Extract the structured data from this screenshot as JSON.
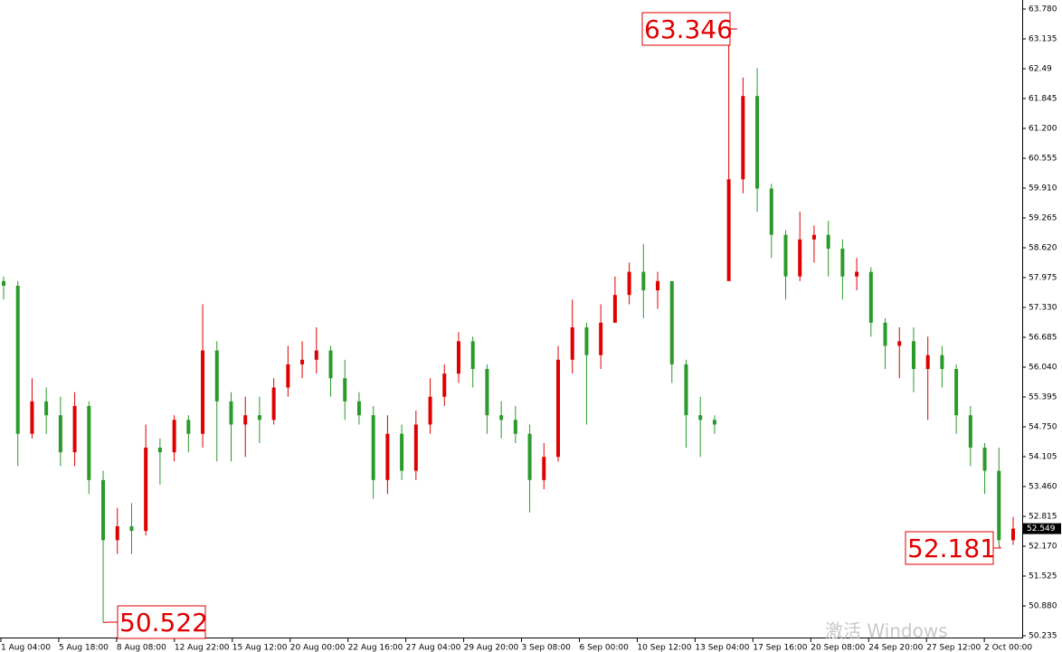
{
  "chart_data": {
    "type": "candlestick",
    "up_color": "#e00000",
    "down_color": "#2a9a2a",
    "ylim": [
      50.235,
      63.78
    ],
    "yticks": [
      50.235,
      {
        "value": 50.88,
        "label": "50.880"
      },
      51.525,
      {
        "value": 52.17,
        "label": "52.170"
      },
      52.815,
      {
        "value": 53.46,
        "label": "53.460"
      },
      54.105,
      {
        "value": 54.75,
        "label": "54.750"
      },
      55.395,
      {
        "value": 56.04,
        "label": "56.040"
      },
      56.685,
      {
        "value": 57.33,
        "label": "57.330"
      },
      57.975,
      {
        "value": 58.62,
        "label": "58.620"
      },
      59.265,
      {
        "value": 59.91,
        "label": "59.910"
      },
      60.555,
      {
        "value": 61.2,
        "label": "61.200"
      },
      61.845,
      62.49,
      63.135,
      {
        "value": 63.78,
        "label": "63.780"
      }
    ],
    "xlabels": [
      "1 Aug 04:00",
      "5 Aug 18:00",
      "8 Aug 08:00",
      "12 Aug 22:00",
      "15 Aug 12:00",
      "20 Aug 00:00",
      "22 Aug 16:00",
      "27 Aug 04:00",
      "29 Aug 20:00",
      "3 Sep 08:00",
      "6 Sep 00:00",
      "10 Sep 12:00",
      "13 Sep 04:00",
      "17 Sep 16:00",
      "20 Sep 08:00",
      "24 Sep 20:00",
      "27 Sep 12:00",
      "2 Oct 00:00"
    ],
    "candles": [
      [
        57.9,
        58.0,
        57.5,
        57.8
      ],
      [
        57.8,
        57.9,
        53.9,
        54.6
      ],
      [
        54.6,
        55.8,
        54.5,
        55.3
      ],
      [
        55.3,
        55.6,
        54.6,
        55.0
      ],
      [
        55.0,
        55.4,
        53.9,
        54.2
      ],
      [
        54.2,
        55.5,
        53.9,
        55.2
      ],
      [
        55.2,
        55.3,
        53.3,
        53.6
      ],
      [
        53.6,
        53.8,
        50.522,
        52.3
      ],
      [
        52.3,
        53.0,
        52.0,
        52.6
      ],
      [
        52.6,
        53.1,
        52.0,
        52.5
      ],
      [
        52.5,
        54.8,
        52.4,
        54.3
      ],
      [
        54.3,
        54.5,
        53.5,
        54.2
      ],
      [
        54.2,
        55.0,
        54.0,
        54.9
      ],
      [
        54.9,
        55.0,
        54.2,
        54.6
      ],
      [
        54.6,
        57.4,
        54.3,
        56.4
      ],
      [
        56.4,
        56.6,
        54.0,
        55.3
      ],
      [
        55.3,
        55.5,
        54.0,
        54.8
      ],
      [
        54.8,
        55.4,
        54.1,
        55.0
      ],
      [
        55.0,
        55.4,
        54.4,
        54.9
      ],
      [
        54.9,
        55.8,
        54.8,
        55.6
      ],
      [
        55.6,
        56.5,
        55.4,
        56.1
      ],
      [
        56.1,
        56.6,
        55.8,
        56.2
      ],
      [
        56.2,
        56.9,
        55.9,
        56.4
      ],
      [
        56.4,
        56.5,
        55.4,
        55.8
      ],
      [
        55.8,
        56.2,
        54.9,
        55.3
      ],
      [
        55.3,
        55.5,
        54.8,
        55.0
      ],
      [
        55.0,
        55.2,
        53.2,
        53.6
      ],
      [
        53.6,
        55.0,
        53.3,
        54.6
      ],
      [
        54.6,
        54.8,
        53.6,
        53.8
      ],
      [
        53.8,
        55.1,
        53.6,
        54.8
      ],
      [
        54.8,
        55.8,
        54.6,
        55.4
      ],
      [
        55.4,
        56.1,
        55.2,
        55.9
      ],
      [
        55.9,
        56.8,
        55.7,
        56.6
      ],
      [
        56.6,
        56.7,
        55.6,
        56.0
      ],
      [
        56.0,
        56.1,
        54.6,
        55.0
      ],
      [
        55.0,
        55.3,
        54.5,
        54.9
      ],
      [
        54.9,
        55.2,
        54.4,
        54.6
      ],
      [
        54.6,
        54.8,
        52.9,
        53.6
      ],
      [
        53.6,
        54.4,
        53.4,
        54.1
      ],
      [
        54.1,
        56.5,
        54.0,
        56.2
      ],
      [
        56.2,
        57.5,
        55.9,
        56.9
      ],
      [
        56.9,
        57.0,
        54.8,
        56.3
      ],
      [
        56.3,
        57.4,
        56.0,
        57.0
      ],
      [
        57.0,
        58.0,
        57.0,
        57.6
      ],
      [
        57.6,
        58.3,
        57.4,
        58.1
      ],
      [
        58.1,
        58.7,
        57.1,
        57.7
      ],
      [
        57.7,
        58.1,
        57.3,
        57.9
      ],
      [
        57.9,
        57.9,
        55.7,
        56.1
      ],
      [
        56.1,
        56.2,
        54.3,
        55.0
      ],
      [
        55.0,
        55.4,
        54.1,
        54.9
      ],
      [
        54.9,
        55.0,
        54.6,
        54.8
      ],
      [
        57.9,
        63.346,
        57.9,
        60.1
      ],
      [
        60.1,
        62.3,
        59.8,
        61.9
      ],
      [
        61.9,
        62.5,
        59.4,
        59.9
      ],
      [
        59.9,
        60.0,
        58.4,
        58.9
      ],
      [
        58.9,
        59.0,
        57.5,
        58.0
      ],
      [
        58.0,
        59.4,
        57.9,
        58.8
      ],
      [
        58.8,
        59.1,
        58.3,
        58.9
      ],
      [
        58.9,
        59.2,
        58.0,
        58.6
      ],
      [
        58.6,
        58.8,
        57.5,
        58.0
      ],
      [
        58.0,
        58.4,
        57.7,
        58.1
      ],
      [
        58.1,
        58.2,
        56.7,
        57.0
      ],
      [
        57.0,
        57.1,
        56.0,
        56.5
      ],
      [
        56.5,
        56.9,
        55.8,
        56.6
      ],
      [
        56.6,
        56.9,
        55.5,
        56.0
      ],
      [
        56.0,
        56.7,
        54.9,
        56.3
      ],
      [
        56.3,
        56.5,
        55.6,
        56.0
      ],
      [
        56.0,
        56.1,
        54.6,
        55.0
      ],
      [
        55.0,
        55.2,
        53.9,
        54.3
      ],
      [
        54.3,
        54.4,
        53.3,
        53.8
      ],
      [
        53.8,
        54.3,
        52.181,
        52.3
      ],
      [
        52.3,
        52.8,
        52.2,
        52.549
      ]
    ],
    "watermark": "激活 Windows"
  }
}
